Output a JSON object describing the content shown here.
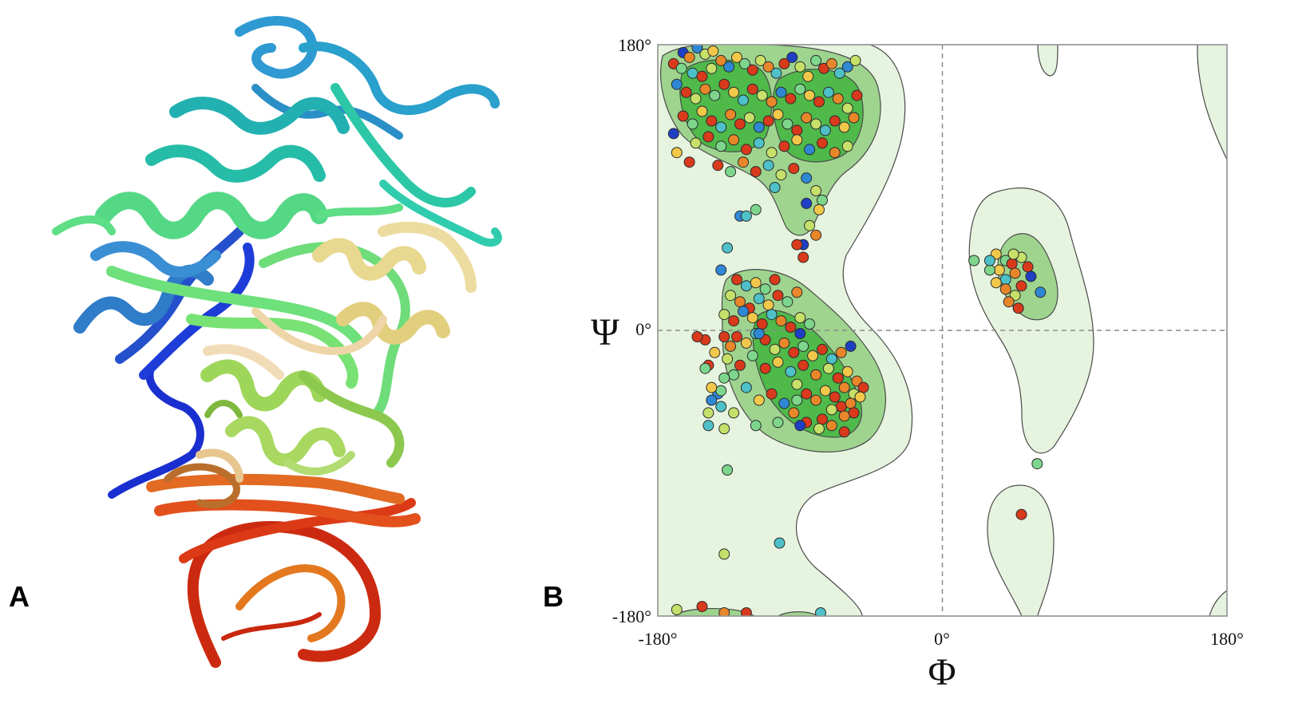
{
  "panels": {
    "a": {
      "label": "A"
    },
    "b": {
      "label": "B"
    }
  },
  "ramachandran": {
    "x_axis_symbol": "Φ",
    "y_axis_symbol": "Ψ",
    "x_ticks": [
      "-180°",
      "0°",
      "180°"
    ],
    "y_ticks": [
      "180°",
      "0°",
      "-180°"
    ]
  },
  "chart_data": {
    "type": "scatter",
    "title": "",
    "xlabel": "Φ",
    "ylabel": "Ψ",
    "xlim": [
      -180,
      180
    ],
    "ylim": [
      -180,
      180
    ],
    "grid": false,
    "reference_lines": [
      {
        "axis": "x",
        "value": 0
      },
      {
        "axis": "y",
        "value": 0
      }
    ],
    "point_colors": [
      "#d93a1c",
      "#e8872a",
      "#f2c84b",
      "#c6e06a",
      "#7ed68c",
      "#4ec0c8",
      "#2f88d4",
      "#1f3fc4"
    ],
    "points": [
      [
        -164,
        175,
        7
      ],
      [
        -160,
        172,
        1
      ],
      [
        -155,
        178,
        6
      ],
      [
        -150,
        174,
        3
      ],
      [
        -145,
        176,
        2
      ],
      [
        -170,
        168,
        0
      ],
      [
        -165,
        165,
        4
      ],
      [
        -158,
        162,
        5
      ],
      [
        -152,
        160,
        0
      ],
      [
        -146,
        165,
        3
      ],
      [
        -140,
        170,
        1
      ],
      [
        -135,
        166,
        6
      ],
      [
        -130,
        172,
        2
      ],
      [
        -125,
        168,
        4
      ],
      [
        -120,
        164,
        0
      ],
      [
        -115,
        170,
        3
      ],
      [
        -110,
        166,
        1
      ],
      [
        -105,
        162,
        5
      ],
      [
        -100,
        168,
        0
      ],
      [
        -95,
        172,
        7
      ],
      [
        -90,
        166,
        3
      ],
      [
        -85,
        160,
        2
      ],
      [
        -80,
        170,
        4
      ],
      [
        -75,
        165,
        0
      ],
      [
        -70,
        168,
        1
      ],
      [
        -65,
        162,
        5
      ],
      [
        -60,
        166,
        6
      ],
      [
        -55,
        170,
        3
      ],
      [
        -168,
        155,
        6
      ],
      [
        -162,
        150,
        0
      ],
      [
        -156,
        146,
        3
      ],
      [
        -150,
        152,
        1
      ],
      [
        -144,
        148,
        4
      ],
      [
        -138,
        155,
        0
      ],
      [
        -132,
        150,
        2
      ],
      [
        -126,
        145,
        5
      ],
      [
        -120,
        152,
        0
      ],
      [
        -114,
        148,
        3
      ],
      [
        -108,
        144,
        1
      ],
      [
        -102,
        150,
        6
      ],
      [
        -96,
        146,
        0
      ],
      [
        -90,
        152,
        4
      ],
      [
        -84,
        148,
        2
      ],
      [
        -78,
        144,
        0
      ],
      [
        -72,
        150,
        5
      ],
      [
        -66,
        146,
        1
      ],
      [
        -60,
        140,
        3
      ],
      [
        -54,
        148,
        0
      ],
      [
        -164,
        135,
        0
      ],
      [
        -158,
        130,
        4
      ],
      [
        -152,
        138,
        2
      ],
      [
        -146,
        132,
        0
      ],
      [
        -140,
        128,
        5
      ],
      [
        -134,
        136,
        1
      ],
      [
        -128,
        130,
        0
      ],
      [
        -122,
        134,
        3
      ],
      [
        -116,
        128,
        6
      ],
      [
        -110,
        132,
        0
      ],
      [
        -104,
        136,
        2
      ],
      [
        -98,
        130,
        4
      ],
      [
        -92,
        126,
        0
      ],
      [
        -86,
        134,
        1
      ],
      [
        -80,
        130,
        3
      ],
      [
        -74,
        126,
        5
      ],
      [
        -68,
        132,
        0
      ],
      [
        -62,
        128,
        2
      ],
      [
        -56,
        134,
        1
      ],
      [
        -170,
        124,
        7
      ],
      [
        -156,
        118,
        3
      ],
      [
        -148,
        122,
        0
      ],
      [
        -140,
        116,
        4
      ],
      [
        -132,
        120,
        1
      ],
      [
        -124,
        114,
        0
      ],
      [
        -116,
        118,
        5
      ],
      [
        -108,
        112,
        3
      ],
      [
        -100,
        116,
        0
      ],
      [
        -92,
        120,
        2
      ],
      [
        -84,
        114,
        6
      ],
      [
        -76,
        118,
        0
      ],
      [
        -68,
        112,
        1
      ],
      [
        -60,
        116,
        3
      ],
      [
        -142,
        104,
        0
      ],
      [
        -134,
        100,
        4
      ],
      [
        -126,
        106,
        1
      ],
      [
        -118,
        100,
        0
      ],
      [
        -110,
        104,
        5
      ],
      [
        -102,
        98,
        3
      ],
      [
        -94,
        102,
        0
      ],
      [
        -86,
        96,
        6
      ],
      [
        -80,
        88,
        3
      ],
      [
        -76,
        82,
        4
      ],
      [
        -78,
        76,
        2
      ],
      [
        -86,
        80,
        7
      ],
      [
        -160,
        106,
        0
      ],
      [
        -168,
        112,
        2
      ],
      [
        -106,
        90,
        5
      ],
      [
        -118,
        76,
        4
      ],
      [
        -128,
        72,
        6
      ],
      [
        -84,
        66,
        3
      ],
      [
        -80,
        60,
        1
      ],
      [
        -88,
        54,
        7
      ],
      [
        -124,
        72,
        5
      ],
      [
        -92,
        54,
        0
      ],
      [
        -136,
        52,
        5
      ],
      [
        -88,
        46,
        0
      ],
      [
        -140,
        38,
        6
      ],
      [
        -130,
        32,
        0
      ],
      [
        -124,
        28,
        5
      ],
      [
        -118,
        30,
        2
      ],
      [
        -112,
        26,
        4
      ],
      [
        -106,
        32,
        0
      ],
      [
        -134,
        22,
        3
      ],
      [
        -128,
        18,
        1
      ],
      [
        -122,
        14,
        0
      ],
      [
        -116,
        20,
        5
      ],
      [
        -110,
        16,
        2
      ],
      [
        -104,
        22,
        0
      ],
      [
        -98,
        18,
        4
      ],
      [
        -92,
        24,
        1
      ],
      [
        -138,
        10,
        3
      ],
      [
        -132,
        6,
        0
      ],
      [
        -126,
        12,
        6
      ],
      [
        -120,
        8,
        2
      ],
      [
        -114,
        4,
        0
      ],
      [
        -108,
        10,
        5
      ],
      [
        -102,
        6,
        1
      ],
      [
        -96,
        2,
        0
      ],
      [
        -90,
        8,
        3
      ],
      [
        -84,
        4,
        4
      ],
      [
        -130,
        -4,
        0
      ],
      [
        -124,
        -8,
        2
      ],
      [
        -118,
        -2,
        5
      ],
      [
        -112,
        -6,
        0
      ],
      [
        -106,
        -12,
        3
      ],
      [
        -100,
        -8,
        1
      ],
      [
        -94,
        -14,
        0
      ],
      [
        -88,
        -10,
        4
      ],
      [
        -82,
        -16,
        2
      ],
      [
        -76,
        -12,
        0
      ],
      [
        -70,
        -18,
        5
      ],
      [
        -64,
        -14,
        1
      ],
      [
        -58,
        -10,
        7
      ],
      [
        -136,
        -18,
        3
      ],
      [
        -128,
        -22,
        0
      ],
      [
        -120,
        -16,
        4
      ],
      [
        -112,
        -24,
        0
      ],
      [
        -104,
        -20,
        2
      ],
      [
        -96,
        -26,
        5
      ],
      [
        -88,
        -22,
        0
      ],
      [
        -80,
        -28,
        1
      ],
      [
        -72,
        -24,
        3
      ],
      [
        -66,
        -30,
        0
      ],
      [
        -60,
        -26,
        2
      ],
      [
        -54,
        -32,
        1
      ],
      [
        -50,
        -36,
        0
      ],
      [
        -56,
        -40,
        3
      ],
      [
        -62,
        -36,
        1
      ],
      [
        -68,
        -42,
        0
      ],
      [
        -74,
        -38,
        2
      ],
      [
        -80,
        -44,
        1
      ],
      [
        -86,
        -40,
        0
      ],
      [
        -92,
        -34,
        3
      ],
      [
        -64,
        -48,
        0
      ],
      [
        -58,
        -46,
        1
      ],
      [
        -52,
        -42,
        2
      ],
      [
        -56,
        -52,
        0
      ],
      [
        -62,
        -54,
        1
      ],
      [
        -70,
        -50,
        3
      ],
      [
        -76,
        -56,
        0
      ],
      [
        -132,
        -28,
        4
      ],
      [
        -124,
        -36,
        5
      ],
      [
        -116,
        -44,
        2
      ],
      [
        -108,
        -40,
        0
      ],
      [
        -100,
        -46,
        6
      ],
      [
        -94,
        -52,
        1
      ],
      [
        -86,
        -58,
        0
      ],
      [
        -78,
        -62,
        3
      ],
      [
        -70,
        -60,
        1
      ],
      [
        -62,
        -64,
        0
      ],
      [
        -140,
        -48,
        5
      ],
      [
        -132,
        -52,
        3
      ],
      [
        -104,
        -58,
        4
      ],
      [
        -90,
        -60,
        7
      ],
      [
        -150,
        -6,
        0
      ],
      [
        -144,
        -14,
        2
      ],
      [
        -138,
        -30,
        4
      ],
      [
        -142,
        -40,
        6
      ],
      [
        -134,
        -10,
        1
      ],
      [
        -155,
        -4,
        0
      ],
      [
        -140,
        -38,
        4
      ],
      [
        -118,
        -60,
        4
      ],
      [
        -138,
        -62,
        3
      ],
      [
        -136,
        -88,
        4
      ],
      [
        -103,
        -134,
        5
      ],
      [
        -138,
        -141,
        3
      ],
      [
        -152,
        -174,
        0
      ],
      [
        -168,
        -176,
        3
      ],
      [
        -138,
        -178,
        1
      ],
      [
        -124,
        -178,
        0
      ],
      [
        -77,
        -178,
        5
      ],
      [
        40,
        44,
        4
      ],
      [
        34,
        48,
        2
      ],
      [
        44,
        42,
        0
      ],
      [
        50,
        46,
        3
      ],
      [
        46,
        36,
        1
      ],
      [
        40,
        32,
        5
      ],
      [
        36,
        38,
        2
      ],
      [
        50,
        28,
        0
      ],
      [
        46,
        22,
        3
      ],
      [
        40,
        26,
        1
      ],
      [
        34,
        30,
        2
      ],
      [
        30,
        38,
        4
      ],
      [
        45,
        48,
        3
      ],
      [
        54,
        40,
        0
      ],
      [
        42,
        18,
        1
      ],
      [
        48,
        14,
        0
      ],
      [
        20,
        44,
        4
      ],
      [
        30,
        44,
        5
      ],
      [
        56,
        34,
        7
      ],
      [
        62,
        24,
        6
      ],
      [
        60,
        -84,
        4
      ],
      [
        50,
        -116,
        0
      ],
      [
        -90,
        -2,
        7
      ],
      [
        -92,
        -44,
        4
      ],
      [
        -148,
        -22,
        0
      ],
      [
        -146,
        -36,
        2
      ],
      [
        -150,
        -24,
        4
      ],
      [
        -148,
        -60,
        5
      ],
      [
        -148,
        -52,
        3
      ],
      [
        -146,
        -44,
        6
      ],
      [
        -116,
        -2,
        6
      ],
      [
        -138,
        -4,
        0
      ]
    ]
  }
}
